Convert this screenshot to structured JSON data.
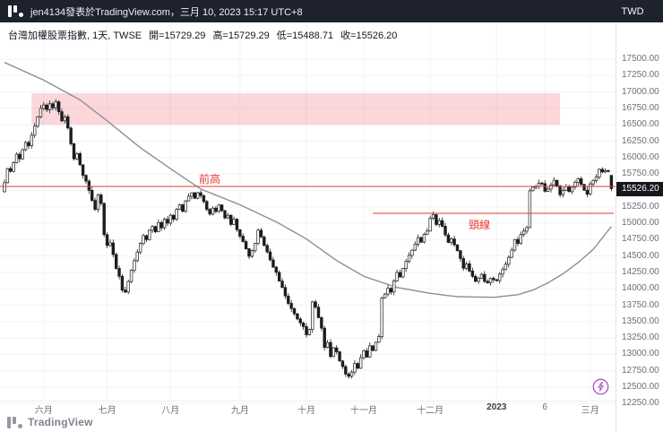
{
  "header": {
    "share_text": "jen4134發表於TradingView.com，三月 10, 2023 15:17 UTC+8",
    "currency_label": "TWD"
  },
  "symbol": {
    "title": "台灣加權股票指數, 1天, TWSE",
    "open": "開=15729.29",
    "high": "高=15729.29",
    "low": "低=15488.71",
    "close": "收=15526.20"
  },
  "footer": {
    "brand": "TradingView"
  },
  "icons": {
    "tradingview_logo": "tv-bars-and-dot-mark",
    "lightning": "lightning-bolt-in-circle"
  },
  "chart_data": {
    "type": "candlestick",
    "title": "台灣加權股票指數, 1天, TWSE",
    "ylabel": "TWD",
    "grid": true,
    "legend_position": "none",
    "ylim": [
      12250,
      17500
    ],
    "last_price_label": "15526.20",
    "ohlc_last": {
      "open": 15729.29,
      "high": 15729.29,
      "low": 15488.71,
      "close": 15526.2
    },
    "first_open": 15480,
    "candle_up_color": "#ffffff",
    "candle_down_color": "#1c1c1e",
    "line_color": "#e53935",
    "ma_color": "#8b8f99",
    "y_axis": {
      "currency": "TWD",
      "ticks": [
        "17500.00",
        "17250.00",
        "17000.00",
        "16750.00",
        "16500.00",
        "16250.00",
        "16000.00",
        "15750.00",
        "15250.00",
        "15000.00",
        "14750.00",
        "14500.00",
        "14250.00",
        "14000.00",
        "13750.00",
        "13500.00",
        "13250.00",
        "13000.00",
        "12750.00",
        "12500.00",
        "12250.00"
      ]
    },
    "x_ticks": [
      {
        "label": "六月",
        "index": 13
      },
      {
        "label": "七月",
        "index": 34
      },
      {
        "label": "八月",
        "index": 55
      },
      {
        "label": "九月",
        "index": 78
      },
      {
        "label": "十月",
        "index": 100
      },
      {
        "label": "十一月",
        "index": 119
      },
      {
        "label": "十二月",
        "index": 141
      },
      {
        "label": "2023",
        "index": 163,
        "major": true
      },
      {
        "label": "6",
        "index": 179
      },
      {
        "label": "三月",
        "index": 194
      }
    ],
    "closes": [
      15616,
      15832,
      15790,
      15920,
      16050,
      15980,
      16120,
      16230,
      16180,
      16340,
      16480,
      16620,
      16750,
      16800,
      16730,
      16820,
      16760,
      16850,
      16700,
      16560,
      16620,
      16450,
      16210,
      15980,
      16060,
      15890,
      15730,
      15641,
      15500,
      15347,
      15210,
      15430,
      15300,
      14825,
      14660,
      14700,
      14523,
      14310,
      14190,
      13980,
      13950,
      14110,
      14280,
      14427,
      14560,
      14690,
      14810,
      14750,
      14892,
      14950,
      14870,
      15010,
      14930,
      15060,
      15000,
      15120,
      15060,
      15210,
      15280,
      15180,
      15340,
      15410,
      15463,
      15380,
      15465,
      15420,
      15330,
      15210,
      15139,
      15230,
      15180,
      15278,
      15190,
      15080,
      15120,
      14980,
      15060,
      14900,
      14802,
      14720,
      14610,
      14494,
      14580,
      14690,
      14894,
      14790,
      14660,
      14561,
      14440,
      14330,
      14250,
      14118,
      14020,
      13890,
      13778,
      13700,
      13620,
      13540,
      13480,
      13424,
      13300,
      13380,
      13801,
      13720,
      13560,
      13400,
      13106,
      13180,
      12967,
      13100,
      13040,
      12900,
      12814,
      12700,
      12666,
      12730,
      12860,
      12789,
      12950,
      13055,
      12960,
      13130,
      13060,
      13185,
      13270,
      13861,
      13920,
      14007,
      13950,
      14120,
      14249,
      14180,
      14310,
      14420,
      14510,
      14589,
      14680,
      14780,
      14710,
      14830,
      14880,
      15072,
      15130,
      14980,
      15040,
      14953,
      14820,
      14706,
      14760,
      14670,
      14580,
      14460,
      14312,
      14380,
      14271,
      14190,
      14113,
      14160,
      14220,
      14113,
      14090,
      14160,
      14138,
      14125,
      14224,
      14292,
      14374,
      14480,
      14590,
      14752,
      14690,
      14825,
      14880,
      14932,
      15493,
      15550,
      15560,
      15610,
      15602,
      15486,
      15520,
      15580,
      15655,
      15570,
      15434,
      15500,
      15559,
      15480,
      15551,
      15620,
      15676,
      15590,
      15503,
      15442,
      15598,
      15650,
      15703,
      15821,
      15780,
      15801,
      15791,
      15526.2
    ],
    "ma_waypoints": [
      [
        0,
        17450
      ],
      [
        13,
        17180
      ],
      [
        25,
        16880
      ],
      [
        34,
        16560
      ],
      [
        45,
        16150
      ],
      [
        55,
        15830
      ],
      [
        65,
        15520
      ],
      [
        78,
        15280
      ],
      [
        90,
        15020
      ],
      [
        100,
        14760
      ],
      [
        110,
        14430
      ],
      [
        119,
        14190
      ],
      [
        130,
        14020
      ],
      [
        141,
        13930
      ],
      [
        150,
        13880
      ],
      [
        162,
        13870
      ],
      [
        170,
        13910
      ],
      [
        175,
        13980
      ],
      [
        180,
        14090
      ],
      [
        185,
        14230
      ],
      [
        190,
        14400
      ],
      [
        195,
        14600
      ],
      [
        201,
        14950
      ]
    ],
    "resistance_zone": {
      "price_top": 16980,
      "price_bottom": 16500,
      "start_index": 9,
      "end_index": 184,
      "color": "rgba(242,54,69,0.2)"
    },
    "lines": [
      {
        "name": "prev-high",
        "label": "前高",
        "price": 15560,
        "full_width": true
      },
      {
        "name": "neckline",
        "label": "頸線",
        "price": 15150,
        "start_index": 122
      }
    ]
  }
}
